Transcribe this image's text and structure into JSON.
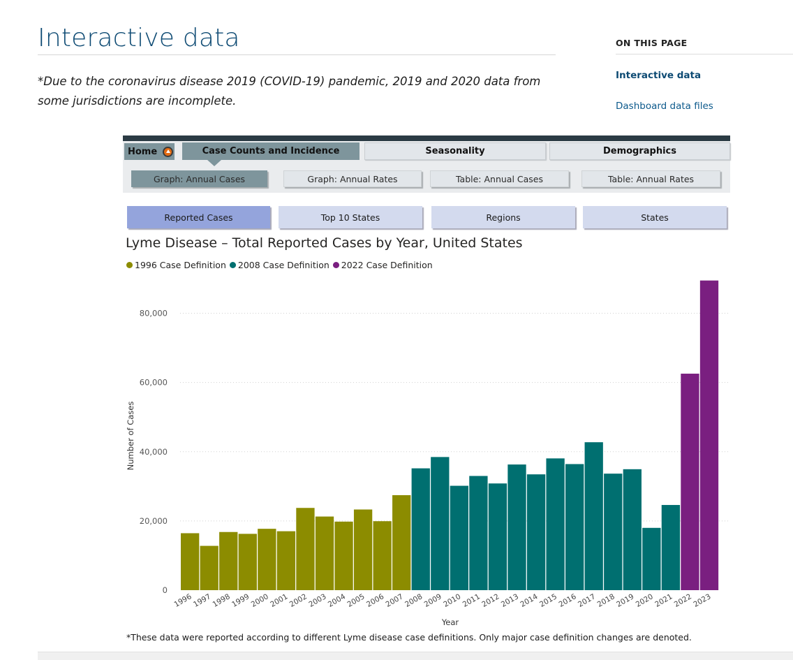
{
  "page": {
    "title": "Interactive data",
    "note": "*Due to the coronavirus disease 2019 (COVID-19) pandemic, 2019 and 2020 data from some jurisdictions are incomplete."
  },
  "on_this_page": {
    "heading": "ON THIS PAGE",
    "links": [
      "Interactive data",
      "Dashboard data files"
    ]
  },
  "dashboard": {
    "home_label": "Home",
    "tabs": [
      {
        "label": "Case Counts and Incidence",
        "active": true
      },
      {
        "label": "Seasonality",
        "active": false
      },
      {
        "label": "Demographics",
        "active": false
      }
    ],
    "subtabs": [
      {
        "label": "Graph: Annual Cases",
        "active": true
      },
      {
        "label": "Graph: Annual Rates",
        "active": false
      },
      {
        "label": "Table: Annual Cases",
        "active": false
      },
      {
        "label": "Table: Annual Rates",
        "active": false
      }
    ],
    "chart_tabs": [
      {
        "label": "Reported Cases",
        "active": true
      },
      {
        "label": "Top 10 States",
        "active": false
      },
      {
        "label": "Regions",
        "active": false
      },
      {
        "label": "States",
        "active": false
      }
    ],
    "footnote": "*These data were reported according to different Lyme disease case definitions. Only major case definition changes are denoted."
  },
  "chart_data": {
    "type": "bar",
    "title": "Lyme Disease – Total Reported Cases by Year, United States",
    "xlabel": "Year",
    "ylabel": "Number of Cases",
    "ylim": [
      0,
      90000
    ],
    "yticks": [
      0,
      20000,
      40000,
      60000,
      80000
    ],
    "ytick_labels": [
      "0",
      "20,000",
      "40,000",
      "60,000",
      "80,000"
    ],
    "grid": true,
    "legend_position": "top-left",
    "legend": [
      {
        "name": "1996 Case Definition",
        "color": "#8c8c00"
      },
      {
        "name": "2008 Case Definition",
        "color": "#006f70"
      },
      {
        "name": "2022 Case Definition",
        "color": "#7a1f80"
      }
    ],
    "categories": [
      "1996",
      "1997",
      "1998",
      "1999",
      "2000",
      "2001",
      "2002",
      "2003",
      "2004",
      "2005",
      "2006",
      "2007",
      "2008",
      "2009",
      "2010",
      "2011",
      "2012",
      "2013",
      "2014",
      "2015",
      "2016",
      "2017",
      "2018",
      "2019",
      "2020",
      "2021",
      "2022",
      "2023"
    ],
    "values": [
      16455,
      12801,
      16801,
      16273,
      17730,
      17029,
      23763,
      21273,
      19804,
      23305,
      19931,
      27444,
      35198,
      38468,
      30158,
      32996,
      30831,
      36307,
      33461,
      38069,
      36429,
      42743,
      33666,
      34945,
      18000,
      24610,
      62551,
      89468
    ],
    "series_index": [
      0,
      0,
      0,
      0,
      0,
      0,
      0,
      0,
      0,
      0,
      0,
      0,
      1,
      1,
      1,
      1,
      1,
      1,
      1,
      1,
      1,
      1,
      1,
      1,
      1,
      1,
      2,
      2
    ]
  }
}
